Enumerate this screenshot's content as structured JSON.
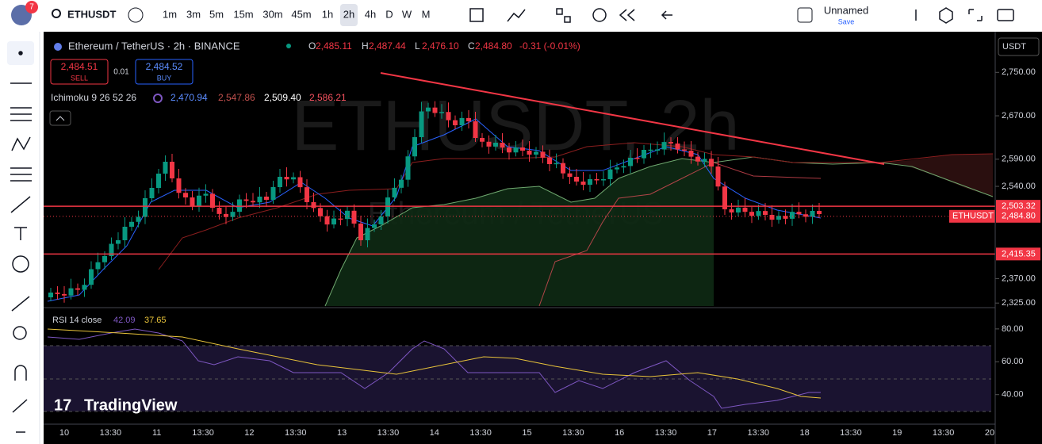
{
  "toolbar": {
    "symbol": "ETHUSDT",
    "notifications": "7",
    "intervals": [
      "1m",
      "3m",
      "5m",
      "15m",
      "30m",
      "45m",
      "1h",
      "2h",
      "4h",
      "D",
      "W",
      "M"
    ],
    "layout_name": "Unnamed",
    "save": "Save"
  },
  "legend": {
    "title": "Ethereum / TetherUS · 2h · BINANCE",
    "ohlc": [
      {
        "label": "O",
        "value": "2,485.11"
      },
      {
        "label": "H",
        "value": "2,487.44"
      },
      {
        "label": "L",
        "value": "2,476.10"
      },
      {
        "label": "C",
        "value": "2,484.80"
      }
    ],
    "change": "-0.31 (-0.01%)"
  },
  "trade": {
    "sell_price": "2,484.51",
    "sell": "SELL",
    "spread": "0.01",
    "buy_price": "2,484.52",
    "buy": "BUY"
  },
  "ichimoku": {
    "name": "Ichimoku 9 26 52 26",
    "values": [
      "2,470.94",
      "2,547.86",
      "2,509.40",
      "2,586.21"
    ]
  },
  "watermark": {
    "symbol": "ETHUSDT, 2h",
    "name": "Ethereum / TetherUS"
  },
  "branding": "TradingView",
  "price_axis": {
    "currency": "USDT",
    "ylim": [
      2318,
      2822
    ],
    "ticks": [
      {
        "value": 2750,
        "label": "2,750.00"
      },
      {
        "value": 2670,
        "label": "2,670.00"
      },
      {
        "value": 2590,
        "label": "2,590.00"
      },
      {
        "value": 2540,
        "label": "2,540.00"
      },
      {
        "value": 2370,
        "label": "2,370.00"
      },
      {
        "value": 2325,
        "label": "2,325.00"
      }
    ],
    "markers": [
      {
        "value": 2503.32,
        "label": "2,503.32"
      },
      {
        "value": 2484.8,
        "label": "2,484.80",
        "tag": "ETHUSDT"
      },
      {
        "value": 2415.35,
        "label": "2,415.35"
      }
    ]
  },
  "rsi": {
    "name": "RSI 14 close",
    "values": [
      "42.09",
      "37.65"
    ],
    "ylim": [
      22,
      92
    ],
    "ticks": [
      {
        "value": 80,
        "label": "80.00"
      },
      {
        "value": 60,
        "label": "60.00"
      },
      {
        "value": 40,
        "label": "40.00"
      }
    ]
  },
  "time_axis": {
    "labels": [
      "10",
      "13:30",
      "11",
      "13:30",
      "12",
      "13:30",
      "13",
      "13:30",
      "14",
      "13:30",
      "15",
      "13:30",
      "16",
      "13:30",
      "17",
      "13:30",
      "18",
      "13:30",
      "19",
      "13:30",
      "20"
    ]
  }
}
